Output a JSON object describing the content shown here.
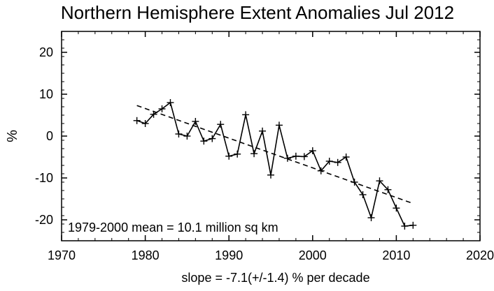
{
  "chart_data": {
    "type": "line",
    "title": "Northern Hemisphere Extent Anomalies Jul 2012",
    "ylabel": "%",
    "xlabel": "",
    "xlim": [
      1970,
      2020
    ],
    "ylim": [
      -25,
      25
    ],
    "x_ticks": [
      1970,
      1980,
      1990,
      2000,
      2010,
      2020
    ],
    "y_ticks": [
      -20,
      -10,
      0,
      10,
      20
    ],
    "grid": false,
    "annotation": "1979-2000 mean =  10.1 million sq km",
    "caption": "slope =  -7.1(+/-1.4) % per decade",
    "series": [
      {
        "style": "solid-with-plus-markers",
        "color": "#000000",
        "x": [
          1979,
          1980,
          1981,
          1982,
          1983,
          1984,
          1985,
          1986,
          1987,
          1988,
          1989,
          1990,
          1991,
          1992,
          1993,
          1994,
          1995,
          1996,
          1997,
          1998,
          1999,
          2000,
          2001,
          2002,
          2003,
          2004,
          2005,
          2006,
          2007,
          2008,
          2009,
          2010,
          2011,
          2012
        ],
        "y": [
          3.7,
          3.0,
          5.2,
          6.5,
          8.0,
          0.5,
          0.0,
          3.5,
          -1.2,
          -0.6,
          2.8,
          -4.8,
          -4.3,
          5.1,
          -4.2,
          1.2,
          -9.3,
          2.6,
          -5.3,
          -4.8,
          -4.9,
          -3.5,
          -8.3,
          -6.0,
          -6.3,
          -5.0,
          -11.0,
          -14.0,
          -19.5,
          -10.7,
          -12.8,
          -17.2,
          -21.5,
          -21.3
        ]
      },
      {
        "style": "dashed-trend",
        "color": "#000000",
        "x": [
          1979,
          2012
        ],
        "y": [
          7.3,
          -16.1
        ]
      }
    ]
  }
}
